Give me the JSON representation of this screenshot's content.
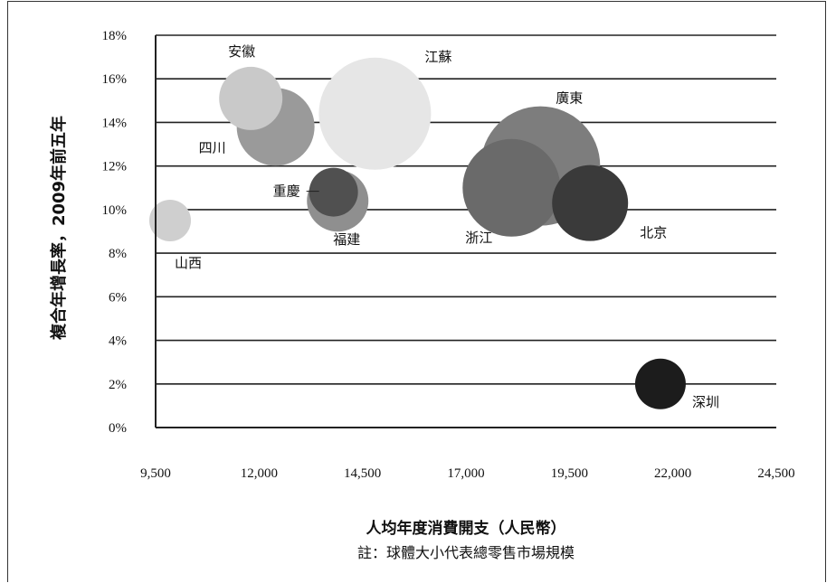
{
  "chart_data": {
    "type": "bubble",
    "title": "",
    "xlabel": "人均年度消費開支（人民幣）",
    "ylabel": "複合年增長率，2009年前五年",
    "note": "註：球體大小代表總零售市場規模",
    "xlim": [
      9500,
      24500
    ],
    "ylim": [
      0,
      18
    ],
    "x_ticks": [
      "9,500",
      "12,000",
      "14,500",
      "17,000",
      "19,500",
      "22,000",
      "24,500"
    ],
    "x_tick_values": [
      9500,
      12000,
      14500,
      17000,
      19500,
      22000,
      24500
    ],
    "y_ticks": [
      "0%",
      "2%",
      "4%",
      "6%",
      "8%",
      "10%",
      "12%",
      "14%",
      "16%",
      "18%"
    ],
    "y_tick_values": [
      0,
      2,
      4,
      6,
      8,
      10,
      12,
      14,
      16,
      18
    ],
    "grid": true,
    "points": [
      {
        "name": "廣東",
        "x": 18800,
        "y": 12.0,
        "size": 66,
        "color": "#7d7d7d"
      },
      {
        "name": "江蘇",
        "x": 14800,
        "y": 14.4,
        "size": 62,
        "color": "#e6e6e6"
      },
      {
        "name": "浙江",
        "x": 18100,
        "y": 11.0,
        "size": 54,
        "color": "#6a6a6a"
      },
      {
        "name": "四川",
        "x": 12400,
        "y": 13.8,
        "size": 43,
        "color": "#9a9a9a"
      },
      {
        "name": "北京",
        "x": 20000,
        "y": 10.3,
        "size": 42,
        "color": "#3a3a3a"
      },
      {
        "name": "安徽",
        "x": 11800,
        "y": 15.1,
        "size": 35,
        "color": "#c9c9c9"
      },
      {
        "name": "福建",
        "x": 13900,
        "y": 10.4,
        "size": 34,
        "color": "#8f8f8f"
      },
      {
        "name": "重慶",
        "x": 13800,
        "y": 10.8,
        "size": 27,
        "color": "#505050"
      },
      {
        "name": "山西",
        "x": 9850,
        "y": 9.5,
        "size": 23,
        "color": "#cfcfcf"
      },
      {
        "name": "深圳",
        "x": 21700,
        "y": 2.0,
        "size": 28,
        "color": "#1c1c1c"
      }
    ]
  }
}
